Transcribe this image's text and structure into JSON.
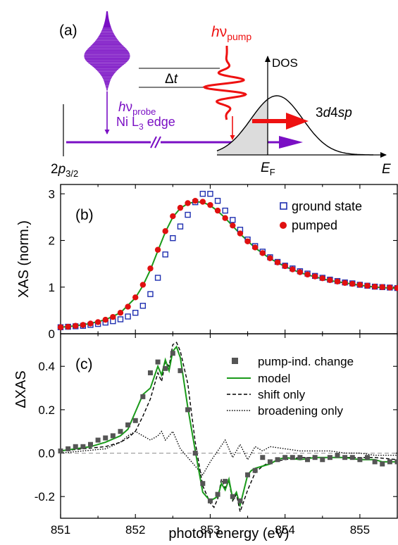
{
  "colors": {
    "probe": "#7a0fc4",
    "pump": "#ee1111",
    "ground_state": "#1f2fb0",
    "pumped": "#e01010",
    "model": "#1a9a1a",
    "change": "#555555",
    "dos_fill": "#dcdcdc"
  },
  "panel_a": {
    "label": "(a)",
    "pump_h": "h",
    "pump_nu": "ν",
    "pump_sub": "pump",
    "probe_h": "h",
    "probe_nu": "ν",
    "probe_sub": "probe",
    "probe_line2_pre": "Ni L",
    "probe_line2_sub": "3",
    "probe_line2_post": " edge",
    "delay_delta": "Δ",
    "delay_t": "t",
    "core_level": "2",
    "core_level_p": "p",
    "core_level_sub": "3/2",
    "dos_label": "DOS",
    "band_label_pre": "3",
    "band_label_d": "d",
    "band_label_mid": "4",
    "band_label_sp": "sp",
    "fermi_E": "E",
    "fermi_sub": "F",
    "energy_axis": "E"
  },
  "chart_data": [
    {
      "panel": "(b)",
      "type": "scatter",
      "ylabel": "XAS (norm.)",
      "xlim": [
        851,
        855.5
      ],
      "ylim": [
        0,
        3.2
      ],
      "xticks": [
        851,
        852,
        853,
        854,
        855
      ],
      "yticks": [
        0,
        1,
        2,
        3
      ],
      "legend_position": "top-right",
      "series": [
        {
          "name": "ground state",
          "marker": "open-square",
          "x": [
            851.0,
            851.1,
            851.2,
            851.3,
            851.4,
            851.5,
            851.6,
            851.7,
            851.8,
            851.9,
            852.0,
            852.1,
            852.2,
            852.3,
            852.4,
            852.5,
            852.6,
            852.7,
            852.8,
            852.9,
            853.0,
            853.1,
            853.2,
            853.3,
            853.4,
            853.5,
            853.6,
            853.7,
            853.8,
            853.9,
            854.0,
            854.1,
            854.2,
            854.3,
            854.4,
            854.5,
            854.6,
            854.7,
            854.8,
            854.9,
            855.0,
            855.1,
            855.2,
            855.3,
            855.4,
            855.5
          ],
          "y": [
            0.14,
            0.15,
            0.16,
            0.17,
            0.19,
            0.21,
            0.24,
            0.27,
            0.31,
            0.37,
            0.45,
            0.6,
            0.85,
            1.2,
            1.7,
            2.05,
            2.3,
            2.55,
            2.82,
            3.0,
            3.0,
            2.85,
            2.64,
            2.44,
            2.23,
            2.02,
            1.88,
            1.76,
            1.64,
            1.54,
            1.46,
            1.4,
            1.34,
            1.29,
            1.24,
            1.2,
            1.16,
            1.13,
            1.1,
            1.08,
            1.05,
            1.03,
            1.01,
            1.0,
            0.99,
            0.98
          ]
        },
        {
          "name": "pumped",
          "marker": "filled-circle",
          "x": [
            851.0,
            851.1,
            851.2,
            851.3,
            851.4,
            851.5,
            851.6,
            851.7,
            851.8,
            851.9,
            852.0,
            852.1,
            852.2,
            852.3,
            852.4,
            852.5,
            852.6,
            852.7,
            852.8,
            852.9,
            853.0,
            853.1,
            853.2,
            853.3,
            853.4,
            853.5,
            853.6,
            853.7,
            853.8,
            853.9,
            854.0,
            854.1,
            854.2,
            854.3,
            854.4,
            854.5,
            854.6,
            854.7,
            854.8,
            854.9,
            855.0,
            855.1,
            855.2,
            855.3,
            855.4,
            855.5
          ],
          "y": [
            0.14,
            0.15,
            0.17,
            0.19,
            0.22,
            0.25,
            0.3,
            0.36,
            0.45,
            0.58,
            0.78,
            1.05,
            1.4,
            1.8,
            2.2,
            2.52,
            2.7,
            2.8,
            2.85,
            2.83,
            2.76,
            2.64,
            2.48,
            2.32,
            2.15,
            1.98,
            1.85,
            1.73,
            1.62,
            1.53,
            1.45,
            1.38,
            1.32,
            1.27,
            1.23,
            1.19,
            1.15,
            1.12,
            1.09,
            1.07,
            1.05,
            1.03,
            1.01,
            1.0,
            0.99,
            0.98
          ]
        },
        {
          "name": "",
          "marker": "line",
          "x": [
            851.0,
            851.2,
            851.4,
            851.6,
            851.8,
            852.0,
            852.1,
            852.2,
            852.3,
            852.4,
            852.5,
            852.6,
            852.7,
            852.8,
            852.9,
            853.0,
            853.1,
            853.2,
            853.3,
            853.4,
            853.6,
            853.8,
            854.0,
            854.2,
            854.4,
            854.6,
            854.8,
            855.0,
            855.2,
            855.5
          ],
          "y": [
            0.14,
            0.17,
            0.22,
            0.3,
            0.45,
            0.77,
            1.03,
            1.37,
            1.78,
            2.18,
            2.5,
            2.69,
            2.79,
            2.83,
            2.82,
            2.75,
            2.63,
            2.48,
            2.31,
            2.14,
            1.84,
            1.61,
            1.44,
            1.31,
            1.22,
            1.14,
            1.09,
            1.04,
            1.0,
            0.97
          ]
        }
      ]
    },
    {
      "panel": "(c)",
      "type": "scatter",
      "xlabel": "photon energy (eV)",
      "ylabel": "ΔXAS",
      "xlim": [
        851,
        855.5
      ],
      "ylim": [
        -0.3,
        0.55
      ],
      "xticks": [
        851,
        852,
        853,
        854,
        855
      ],
      "yticks": [
        -0.2,
        0.0,
        0.2,
        0.4
      ],
      "legend_position": "top-right",
      "series": [
        {
          "name": "pump-ind. change",
          "marker": "filled-square",
          "x": [
            851.0,
            851.1,
            851.2,
            851.3,
            851.4,
            851.5,
            851.6,
            851.7,
            851.8,
            851.9,
            852.0,
            852.1,
            852.2,
            852.3,
            852.4,
            852.5,
            852.6,
            852.7,
            852.8,
            852.9,
            853.0,
            853.1,
            853.2,
            853.3,
            853.4,
            853.5,
            853.6,
            853.7,
            853.8,
            853.9,
            854.0,
            854.1,
            854.2,
            854.3,
            854.4,
            854.5,
            854.6,
            854.7,
            854.8,
            854.9,
            855.0,
            855.1,
            855.2,
            855.3,
            855.4,
            855.5
          ],
          "y": [
            0.01,
            0.02,
            0.03,
            0.03,
            0.04,
            0.06,
            0.07,
            0.08,
            0.1,
            0.13,
            0.15,
            0.26,
            0.37,
            0.42,
            0.39,
            0.46,
            0.38,
            0.2,
            0.0,
            -0.14,
            -0.22,
            -0.19,
            -0.13,
            -0.2,
            -0.22,
            -0.1,
            -0.08,
            -0.02,
            -0.04,
            -0.03,
            -0.02,
            -0.02,
            -0.02,
            -0.03,
            -0.02,
            -0.03,
            -0.02,
            -0.01,
            -0.02,
            -0.02,
            -0.03,
            -0.02,
            -0.04,
            -0.05,
            -0.04,
            -0.04
          ]
        },
        {
          "name": "model",
          "marker": "line",
          "x": [
            851.0,
            851.2,
            851.4,
            851.6,
            851.8,
            851.9,
            852.0,
            852.1,
            852.2,
            852.3,
            852.35,
            852.4,
            852.45,
            852.5,
            852.55,
            852.6,
            852.7,
            852.8,
            852.9,
            853.0,
            853.1,
            853.15,
            853.2,
            853.25,
            853.3,
            853.35,
            853.4,
            853.5,
            853.55,
            853.6,
            853.7,
            853.8,
            853.9,
            854.0,
            854.2,
            854.4,
            854.6,
            854.8,
            855.0,
            855.2,
            855.3,
            855.4,
            855.5
          ],
          "y": [
            0.01,
            0.02,
            0.03,
            0.05,
            0.08,
            0.11,
            0.19,
            0.27,
            0.3,
            0.4,
            0.36,
            0.43,
            0.38,
            0.47,
            0.49,
            0.44,
            0.21,
            0.01,
            -0.18,
            -0.22,
            -0.2,
            -0.14,
            -0.17,
            -0.12,
            -0.21,
            -0.18,
            -0.24,
            -0.1,
            -0.08,
            -0.07,
            -0.06,
            -0.05,
            -0.03,
            -0.02,
            -0.03,
            -0.02,
            -0.02,
            -0.02,
            -0.03,
            -0.03,
            -0.04,
            -0.04,
            -0.04
          ]
        },
        {
          "name": "shift only",
          "marker": "dashed-line",
          "x": [
            851.0,
            851.3,
            851.6,
            851.8,
            851.9,
            852.0,
            852.1,
            852.2,
            852.3,
            852.35,
            852.4,
            852.45,
            852.5,
            852.55,
            852.6,
            852.7,
            852.8,
            852.9,
            853.0,
            853.05,
            853.1,
            853.15,
            853.2,
            853.25,
            853.3,
            853.35,
            853.4,
            853.5,
            853.6,
            853.7,
            853.8,
            854.0,
            854.2,
            854.4,
            854.6,
            854.8,
            855.0,
            855.2,
            855.5
          ],
          "y": [
            0.01,
            0.02,
            0.03,
            0.05,
            0.07,
            0.1,
            0.17,
            0.25,
            0.37,
            0.33,
            0.42,
            0.4,
            0.5,
            0.51,
            0.47,
            0.32,
            0.05,
            -0.15,
            -0.23,
            -0.25,
            -0.21,
            -0.12,
            -0.16,
            -0.13,
            -0.22,
            -0.19,
            -0.27,
            -0.17,
            -0.09,
            -0.06,
            -0.04,
            -0.03,
            -0.02,
            -0.02,
            -0.02,
            -0.02,
            -0.02,
            -0.02,
            -0.03
          ]
        },
        {
          "name": "broadening only",
          "marker": "dotted-line",
          "x": [
            851.0,
            851.3,
            851.6,
            851.8,
            851.9,
            852.0,
            852.1,
            852.2,
            852.3,
            852.35,
            852.4,
            852.45,
            852.5,
            852.55,
            852.6,
            852.7,
            852.8,
            852.9,
            853.0,
            853.1,
            853.2,
            853.3,
            853.4,
            853.5,
            853.6,
            853.7,
            853.8,
            854.0,
            854.2,
            854.4,
            854.6,
            854.8,
            855.0,
            855.2,
            855.5
          ],
          "y": [
            0.0,
            0.01,
            0.02,
            0.05,
            0.08,
            0.1,
            0.08,
            0.06,
            0.08,
            0.1,
            0.06,
            0.08,
            0.1,
            0.06,
            0.02,
            -0.02,
            -0.06,
            -0.1,
            -0.04,
            0.01,
            0.06,
            -0.02,
            0.04,
            -0.03,
            0.03,
            0.01,
            0.03,
            0.02,
            0.01,
            0.01,
            0.01,
            0.0,
            0.0,
            -0.01,
            -0.01
          ]
        }
      ]
    }
  ]
}
